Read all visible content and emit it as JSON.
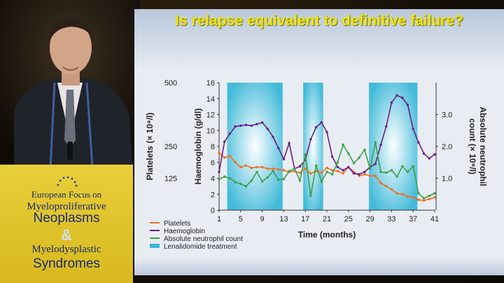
{
  "event": {
    "line1": "European Focus on",
    "line2": "Myeloproliferative",
    "line3": "Neoplasms",
    "amp": "&",
    "line4": "Myelodysplastic",
    "line5": "Syndromes"
  },
  "colors": {
    "platelets": "#f07020",
    "haemoglobin": "#6a1e86",
    "neutrophil": "#3aa04a",
    "treatment": "#3ab8d8",
    "title": "#f0e400"
  },
  "chart_data": {
    "type": "line",
    "title": "Is relapse equivalent to definitive failure?",
    "xlabel": "Time (months)",
    "ylabel_left": "Haemoglobin (g/dl)",
    "ylabel_platelets": "Platelets (× 10⁹/l)",
    "ylabel_right": "Absolute neutrophil count (× 10⁹/l)",
    "xlim": [
      1,
      41
    ],
    "ylim": [
      0,
      16
    ],
    "x_ticks": [
      1,
      5,
      9,
      13,
      17,
      21,
      25,
      29,
      33,
      37,
      41
    ],
    "y_ticks": [
      0,
      2,
      4,
      6,
      8,
      10,
      12,
      14,
      16
    ],
    "platelet_ticks": [
      {
        "label": "500",
        "hb": 16
      },
      {
        "label": "250",
        "hb": 8
      },
      {
        "label": "125",
        "hb": 4
      }
    ],
    "anc_ticks": [
      {
        "label": "3.0",
        "hb": 12
      },
      {
        "label": "2.0",
        "hb": 8
      },
      {
        "label": "1.0",
        "hb": 4
      }
    ],
    "treatment_periods": [
      [
        2.5,
        12.8
      ],
      [
        16.6,
        20.3
      ],
      [
        28.8,
        37.8
      ]
    ],
    "legend": [
      "Platelets",
      "Haemoglobin",
      "Absolute neutrophil count",
      "Lenalidomide treatment"
    ],
    "series": [
      {
        "name": "Platelets",
        "color": "#f07020",
        "x": [
          1,
          2,
          3,
          4,
          5,
          6,
          7,
          8,
          9,
          10,
          11,
          12,
          13,
          14,
          15,
          16,
          17,
          18,
          19,
          20,
          21,
          22,
          23,
          24,
          25,
          26,
          27,
          28,
          29,
          30,
          31,
          32,
          33,
          34,
          35,
          36,
          37,
          38,
          39,
          40,
          41
        ],
        "y": [
          7.2,
          6.6,
          6.8,
          6.0,
          5.4,
          5.6,
          5.3,
          5.4,
          5.4,
          5.2,
          5.2,
          5.1,
          5.0,
          4.8,
          4.9,
          4.7,
          5.2,
          4.6,
          4.9,
          4.7,
          5.3,
          5.0,
          4.9,
          4.6,
          5.4,
          4.8,
          4.3,
          4.5,
          4.3,
          4.3,
          3.4,
          3.0,
          2.6,
          2.1,
          2.0,
          1.7,
          1.6,
          1.3,
          1.2,
          1.4,
          1.6
        ]
      },
      {
        "name": "Haemoglobin",
        "color": "#6a1e86",
        "x": [
          1,
          2,
          3,
          4,
          5,
          6,
          7,
          8,
          9,
          10,
          11,
          12,
          13,
          14,
          15,
          16,
          17,
          18,
          19,
          20,
          21,
          22,
          23,
          24,
          25,
          26,
          27,
          28,
          29,
          30,
          31,
          32,
          33,
          34,
          35,
          36,
          37,
          38,
          39,
          40,
          41
        ],
        "y": [
          4.8,
          8.6,
          9.6,
          10.5,
          10.6,
          10.7,
          10.6,
          10.8,
          11.0,
          10.2,
          9.2,
          7.8,
          6.4,
          8.4,
          5.2,
          5.5,
          6.3,
          8.9,
          10.4,
          11.0,
          9.8,
          6.7,
          5.4,
          5.0,
          5.4,
          4.6,
          4.5,
          4.8,
          5.4,
          5.8,
          8.2,
          10.5,
          13.5,
          14.4,
          14.1,
          13.2,
          10.2,
          8.5,
          7.1,
          6.5,
          7.0
        ]
      },
      {
        "name": "Absolute neutrophil count",
        "color": "#3aa04a",
        "x": [
          1,
          2,
          3,
          4,
          5,
          6,
          7,
          8,
          9,
          10,
          11,
          12,
          13,
          14,
          15,
          16,
          17,
          18,
          19,
          20,
          21,
          22,
          23,
          24,
          25,
          26,
          27,
          28,
          29,
          30,
          31,
          32,
          33,
          34,
          35,
          36,
          37,
          38,
          39,
          40,
          41
        ],
        "y": [
          3.9,
          4.2,
          4.0,
          3.5,
          3.3,
          3.0,
          3.7,
          4.8,
          3.6,
          4.1,
          4.9,
          3.8,
          3.9,
          4.9,
          5.2,
          3.7,
          7.0,
          1.8,
          5.6,
          3.6,
          4.8,
          4.5,
          6.0,
          8.2,
          7.1,
          5.9,
          6.6,
          7.6,
          5.2,
          8.5,
          4.8,
          4.7,
          5.0,
          4.2,
          5.5,
          4.8,
          5.5,
          2.1,
          1.5,
          1.8,
          2.1
        ]
      }
    ]
  }
}
